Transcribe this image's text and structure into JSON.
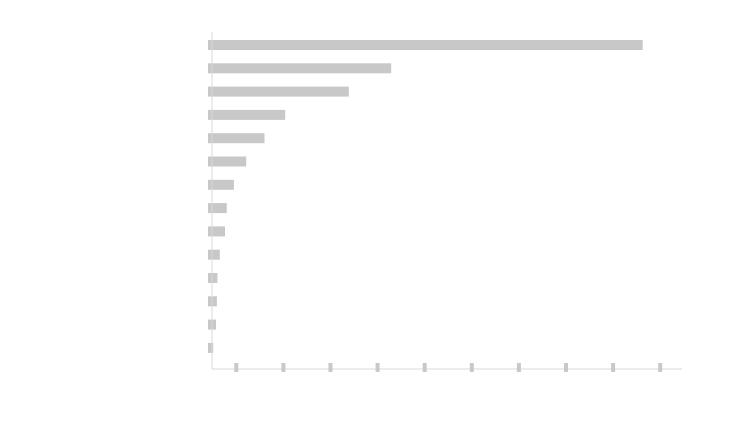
{
  "chart_data": {
    "type": "bar",
    "orientation": "horizontal",
    "title": "",
    "xlabel": "",
    "ylabel": "",
    "categories": [
      "",
      "",
      "",
      "",
      "",
      "",
      "",
      "",
      "",
      "",
      "",
      "",
      "",
      ""
    ],
    "values": [
      92.3,
      38.9,
      29.9,
      16.4,
      12.0,
      8.1,
      5.5,
      4.0,
      3.6,
      2.5,
      2.0,
      1.9,
      1.7,
      1.1
    ],
    "xlim": [
      0,
      100
    ],
    "x_ticks": [
      6,
      16,
      26,
      36,
      46,
      56,
      66,
      76,
      86,
      96
    ],
    "grid": false,
    "legend": "none",
    "colors": {
      "bar": "#c8c8c8",
      "axis": "#d9d9d9",
      "tick": "#c8c8c8"
    }
  }
}
